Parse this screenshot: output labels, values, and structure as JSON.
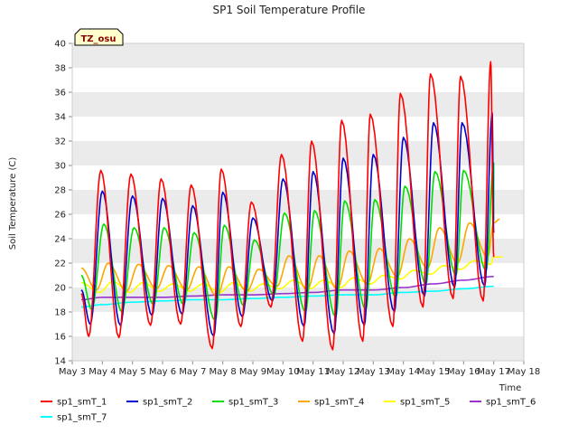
{
  "chart_data": {
    "type": "line",
    "title": "SP1 Soil Temperature Profile",
    "xlabel": "Time",
    "ylabel": "Soil Temperature (C)",
    "annotation": "TZ_osu",
    "xlim": [
      3,
      18
    ],
    "ylim": [
      14,
      40
    ],
    "x_ticks": [
      "May 3",
      "May 4",
      "May 5",
      "May 6",
      "May 7",
      "May 8",
      "May 9",
      "May 10",
      "May 11",
      "May 12",
      "May 13",
      "May 14",
      "May 15",
      "May 16",
      "May 17",
      "May 18"
    ],
    "y_ticks": [
      14,
      16,
      18,
      20,
      22,
      24,
      26,
      28,
      30,
      32,
      34,
      36,
      38,
      40
    ],
    "grid": "horizontal bands",
    "legend_position": "bottom",
    "x_unit_note": "x values are days of May (fractional)",
    "series": [
      {
        "name": "sp1_smT_1",
        "color": "#ff0000",
        "peaks": [
          [
            3.3,
            19.5
          ],
          [
            3.95,
            29.6
          ],
          [
            4.95,
            29.3
          ],
          [
            5.95,
            28.9
          ],
          [
            6.95,
            28.4
          ],
          [
            7.95,
            29.7
          ],
          [
            8.95,
            27.0
          ],
          [
            9.95,
            30.9
          ],
          [
            10.95,
            32.0
          ],
          [
            11.95,
            33.7
          ],
          [
            12.9,
            34.2
          ],
          [
            13.9,
            35.9
          ],
          [
            14.9,
            37.5
          ],
          [
            15.9,
            37.3
          ],
          [
            16.9,
            38.5
          ]
        ],
        "troughs": [
          [
            3.55,
            16.0
          ],
          [
            4.55,
            15.9
          ],
          [
            5.6,
            16.9
          ],
          [
            6.6,
            17.0
          ],
          [
            7.65,
            15.0
          ],
          [
            8.6,
            16.8
          ],
          [
            9.6,
            18.4
          ],
          [
            10.65,
            15.6
          ],
          [
            11.65,
            14.9
          ],
          [
            12.65,
            15.6
          ],
          [
            13.65,
            16.8
          ],
          [
            14.65,
            18.4
          ],
          [
            15.65,
            19.1
          ],
          [
            16.65,
            18.9
          ]
        ],
        "end": [
          17.0,
          22.5
        ]
      },
      {
        "name": "sp1_smT_2",
        "color": "#0000cc",
        "peaks": [
          [
            3.3,
            19.8
          ],
          [
            4.0,
            27.9
          ],
          [
            5.0,
            27.5
          ],
          [
            6.0,
            27.3
          ],
          [
            7.0,
            26.7
          ],
          [
            8.0,
            27.8
          ],
          [
            9.0,
            25.7
          ],
          [
            10.0,
            28.9
          ],
          [
            11.0,
            29.5
          ],
          [
            12.0,
            30.6
          ],
          [
            13.0,
            30.9
          ],
          [
            14.0,
            32.3
          ],
          [
            15.0,
            33.5
          ],
          [
            15.95,
            33.5
          ],
          [
            16.95,
            34.3
          ]
        ],
        "troughs": [
          [
            3.6,
            17.0
          ],
          [
            4.6,
            16.9
          ],
          [
            5.65,
            17.7
          ],
          [
            6.65,
            17.8
          ],
          [
            7.7,
            16.0
          ],
          [
            8.65,
            17.6
          ],
          [
            9.65,
            18.9
          ],
          [
            10.7,
            16.8
          ],
          [
            11.7,
            16.2
          ],
          [
            12.7,
            16.9
          ],
          [
            13.7,
            18.0
          ],
          [
            14.7,
            19.3
          ],
          [
            15.7,
            20.0
          ],
          [
            16.7,
            20.1
          ]
        ],
        "end": [
          17.0,
          24.5
        ]
      },
      {
        "name": "sp1_smT_3",
        "color": "#00dd00",
        "peaks": [
          [
            3.3,
            21.0
          ],
          [
            4.05,
            25.2
          ],
          [
            5.05,
            24.9
          ],
          [
            6.05,
            24.9
          ],
          [
            7.05,
            24.5
          ],
          [
            8.05,
            25.1
          ],
          [
            9.05,
            23.9
          ],
          [
            10.05,
            26.1
          ],
          [
            11.05,
            26.3
          ],
          [
            12.05,
            27.1
          ],
          [
            13.05,
            27.2
          ],
          [
            14.05,
            28.3
          ],
          [
            15.05,
            29.5
          ],
          [
            16.0,
            29.6
          ],
          [
            17.0,
            30.2
          ]
        ],
        "troughs": [
          [
            3.65,
            18.2
          ],
          [
            4.65,
            18.0
          ],
          [
            5.7,
            18.6
          ],
          [
            6.7,
            18.6
          ],
          [
            7.75,
            17.3
          ],
          [
            8.7,
            18.5
          ],
          [
            9.7,
            19.4
          ],
          [
            10.75,
            18.0
          ],
          [
            11.75,
            17.6
          ],
          [
            12.75,
            18.2
          ],
          [
            13.75,
            19.2
          ],
          [
            14.75,
            20.3
          ],
          [
            15.75,
            21.0
          ],
          [
            16.75,
            21.4
          ]
        ],
        "end": [
          17.0,
          25.5
        ]
      },
      {
        "name": "sp1_smT_4",
        "color": "#ffa500",
        "peaks": [
          [
            3.3,
            21.6
          ],
          [
            4.2,
            22.0
          ],
          [
            5.2,
            21.9
          ],
          [
            6.2,
            21.8
          ],
          [
            7.2,
            21.7
          ],
          [
            8.2,
            21.7
          ],
          [
            9.2,
            21.5
          ],
          [
            10.2,
            22.6
          ],
          [
            11.2,
            22.6
          ],
          [
            12.2,
            23.0
          ],
          [
            13.2,
            23.2
          ],
          [
            14.2,
            24.0
          ],
          [
            15.2,
            24.9
          ],
          [
            16.2,
            25.3
          ],
          [
            17.2,
            25.6
          ]
        ],
        "troughs": [
          [
            3.8,
            19.8
          ],
          [
            4.8,
            19.7
          ],
          [
            5.8,
            19.9
          ],
          [
            6.8,
            19.8
          ],
          [
            7.8,
            19.3
          ],
          [
            8.8,
            19.7
          ],
          [
            9.8,
            20.1
          ],
          [
            10.8,
            19.8
          ],
          [
            11.8,
            19.9
          ],
          [
            12.8,
            20.3
          ],
          [
            13.8,
            20.9
          ],
          [
            14.8,
            21.6
          ],
          [
            15.8,
            22.0
          ],
          [
            16.8,
            22.5
          ]
        ],
        "end": [
          17.0,
          25.3
        ]
      },
      {
        "name": "sp1_smT_5",
        "color": "#ffff00",
        "peaks": [
          [
            3.3,
            20.4
          ],
          [
            4.35,
            20.5
          ],
          [
            5.35,
            20.4
          ],
          [
            6.35,
            20.3
          ],
          [
            7.35,
            20.3
          ],
          [
            8.35,
            20.4
          ],
          [
            9.35,
            20.3
          ],
          [
            10.35,
            20.6
          ],
          [
            11.35,
            20.6
          ],
          [
            12.35,
            20.8
          ],
          [
            13.35,
            21.0
          ],
          [
            14.35,
            21.4
          ],
          [
            15.35,
            21.8
          ],
          [
            16.35,
            22.2
          ],
          [
            17.3,
            22.5
          ]
        ],
        "troughs": [
          [
            3.9,
            19.6
          ],
          [
            4.9,
            19.6
          ],
          [
            5.9,
            19.7
          ],
          [
            6.9,
            19.7
          ],
          [
            7.9,
            19.6
          ],
          [
            8.9,
            19.7
          ],
          [
            9.9,
            19.9
          ],
          [
            10.9,
            19.9
          ],
          [
            11.9,
            20.0
          ],
          [
            12.9,
            20.3
          ],
          [
            13.9,
            20.7
          ],
          [
            14.9,
            21.1
          ],
          [
            15.9,
            21.5
          ],
          [
            16.9,
            21.9
          ]
        ],
        "end": [
          17.0,
          22.5
        ]
      },
      {
        "name": "sp1_smT_6",
        "color": "#9933cc",
        "points": [
          [
            3.3,
            19.0
          ],
          [
            4.0,
            19.2
          ],
          [
            5.0,
            19.2
          ],
          [
            6.0,
            19.2
          ],
          [
            7.0,
            19.3
          ],
          [
            8.0,
            19.4
          ],
          [
            9.0,
            19.4
          ],
          [
            10.0,
            19.5
          ],
          [
            11.0,
            19.6
          ],
          [
            12.0,
            19.8
          ],
          [
            13.0,
            19.8
          ],
          [
            14.0,
            20.0
          ],
          [
            15.0,
            20.3
          ],
          [
            16.0,
            20.6
          ],
          [
            17.0,
            20.9
          ]
        ]
      },
      {
        "name": "sp1_smT_7",
        "color": "#00ffff",
        "points": [
          [
            3.3,
            18.4
          ],
          [
            4.0,
            18.6
          ],
          [
            5.0,
            18.8
          ],
          [
            6.0,
            18.9
          ],
          [
            7.0,
            19.0
          ],
          [
            8.0,
            19.0
          ],
          [
            9.0,
            19.1
          ],
          [
            10.0,
            19.2
          ],
          [
            11.0,
            19.3
          ],
          [
            12.0,
            19.4
          ],
          [
            13.0,
            19.4
          ],
          [
            14.0,
            19.6
          ],
          [
            15.0,
            19.7
          ],
          [
            16.0,
            19.9
          ],
          [
            17.0,
            20.1
          ]
        ]
      }
    ]
  }
}
